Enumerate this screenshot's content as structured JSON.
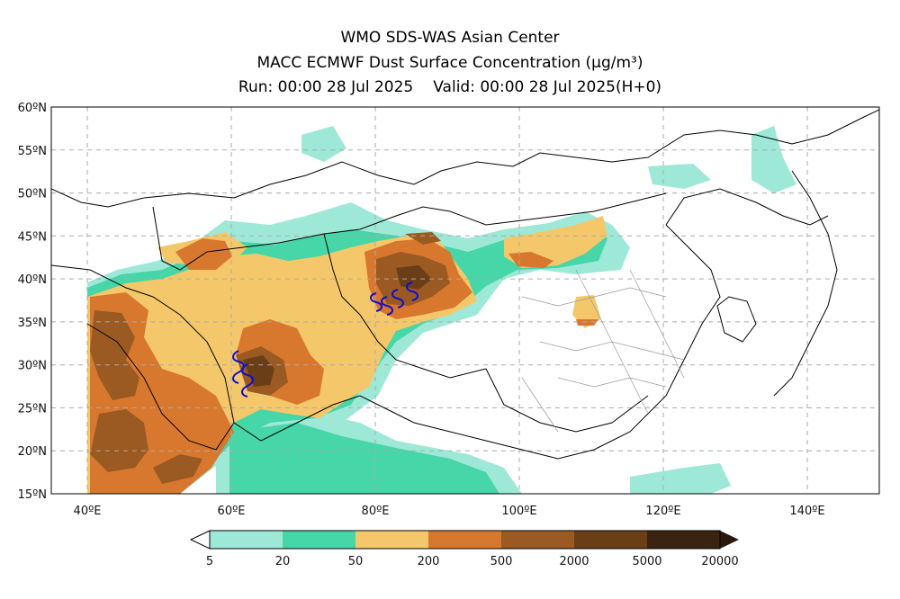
{
  "header": {
    "line1": "WMO SDS-WAS Asian Center",
    "line2": "MACC ECMWF Dust Surface Concentration (μg/m³)",
    "run_label": "Run: 00:00 28 Jul 2025",
    "valid_label": "Valid: 00:00 28 Jul 2025(H+0)"
  },
  "map": {
    "lat_labels": [
      "60ºN",
      "55ºN",
      "50ºN",
      "45ºN",
      "40ºN",
      "35ºN",
      "30ºN",
      "25ºN",
      "20ºN",
      "15ºN"
    ],
    "lon_labels": [
      "40ºE",
      "60ºE",
      "80ºE",
      "100ºE",
      "120ºE",
      "140ºE"
    ],
    "lat_range": [
      15,
      60
    ],
    "lon_range": [
      35,
      150
    ],
    "gridlines": true
  },
  "colorbar": {
    "labels": [
      "5",
      "20",
      "50",
      "200",
      "500",
      "2000",
      "5000",
      "20000"
    ],
    "colors": [
      "#9ee8d8",
      "#46d6a8",
      "#f4c86a",
      "#d8782e",
      "#9a5a22",
      "#6a3e16",
      "#3a2410"
    ],
    "arrow_low_color": "#ffffff",
    "arrow_high_color": "#2a180a"
  }
}
